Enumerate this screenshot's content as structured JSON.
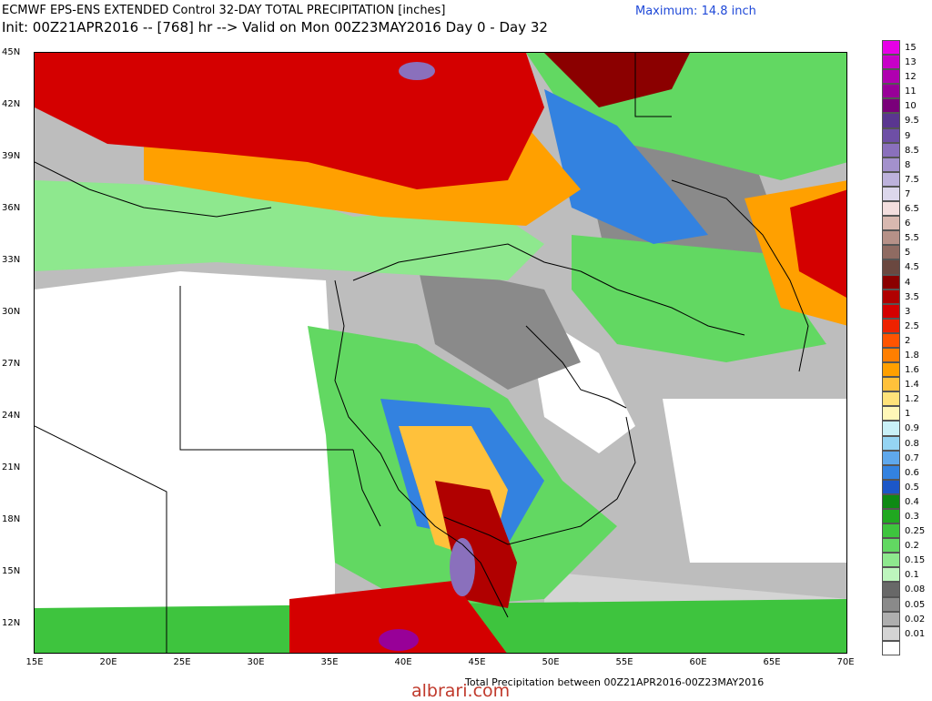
{
  "header": {
    "title_line1": "ECMWF EPS-ENS EXTENDED Control 32-DAY TOTAL PRECIPITATION [inches]",
    "title_line2": "Init: 00Z21APR2016 -- [768] hr --> Valid on Mon 00Z23MAY2016  Day 0 - Day 32",
    "maximum": "Maximum: 14.8 inch"
  },
  "axes": {
    "lat_labels": [
      "45N",
      "42N",
      "39N",
      "36N",
      "33N",
      "30N",
      "27N",
      "24N",
      "21N",
      "18N",
      "15N",
      "12N"
    ],
    "lon_labels": [
      "15E",
      "20E",
      "25E",
      "30E",
      "35E",
      "40E",
      "45E",
      "50E",
      "55E",
      "60E",
      "65E",
      "70E"
    ]
  },
  "footer": "Total Precipitation between 00Z21APR2016-00Z23MAY2016",
  "watermark": "albrari.com",
  "legend": [
    {
      "label": "15",
      "color": "#e700e7"
    },
    {
      "label": "13",
      "color": "#c800c8"
    },
    {
      "label": "12",
      "color": "#b000b0"
    },
    {
      "label": "11",
      "color": "#980098"
    },
    {
      "label": "10",
      "color": "#7a007a"
    },
    {
      "label": "9.5",
      "color": "#5a3690"
    },
    {
      "label": "9",
      "color": "#6e4fa6"
    },
    {
      "label": "8.5",
      "color": "#8a70bc"
    },
    {
      "label": "8",
      "color": "#a391cc"
    },
    {
      "label": "7.5",
      "color": "#bdb2dc"
    },
    {
      "label": "7",
      "color": "#dcd7ec"
    },
    {
      "label": "6.5",
      "color": "#f3dede"
    },
    {
      "label": "6",
      "color": "#d8b8b0"
    },
    {
      "label": "5.5",
      "color": "#b69188"
    },
    {
      "label": "5",
      "color": "#8f6b62"
    },
    {
      "label": "4.5",
      "color": "#6a4840"
    },
    {
      "label": "4",
      "color": "#8b0000"
    },
    {
      "label": "3.5",
      "color": "#b00000"
    },
    {
      "label": "3",
      "color": "#d40000"
    },
    {
      "label": "2.5",
      "color": "#ee2200"
    },
    {
      "label": "2",
      "color": "#ff5400"
    },
    {
      "label": "1.8",
      "color": "#ff7f00"
    },
    {
      "label": "1.6",
      "color": "#ffa000"
    },
    {
      "label": "1.4",
      "color": "#ffc13b"
    },
    {
      "label": "1.2",
      "color": "#ffe27a"
    },
    {
      "label": "1",
      "color": "#fff7b8"
    },
    {
      "label": "0.9",
      "color": "#c9f0f7"
    },
    {
      "label": "0.8",
      "color": "#95d4f3"
    },
    {
      "label": "0.7",
      "color": "#5fa8ec"
    },
    {
      "label": "0.6",
      "color": "#3382e0"
    },
    {
      "label": "0.5",
      "color": "#1c57c8"
    },
    {
      "label": "0.4",
      "color": "#0e8a14"
    },
    {
      "label": "0.3",
      "color": "#20a820"
    },
    {
      "label": "0.25",
      "color": "#3ec43e"
    },
    {
      "label": "0.2",
      "color": "#62d862"
    },
    {
      "label": "0.15",
      "color": "#8ee88e"
    },
    {
      "label": "0.1",
      "color": "#bdf5bd"
    },
    {
      "label": "0.08",
      "color": "#686868"
    },
    {
      "label": "0.05",
      "color": "#8a8a8a"
    },
    {
      "label": "0.02",
      "color": "#aeaeae"
    },
    {
      "label": "0.01",
      "color": "#d4d4d4"
    },
    {
      "label": "",
      "color": "#ffffff"
    }
  ]
}
